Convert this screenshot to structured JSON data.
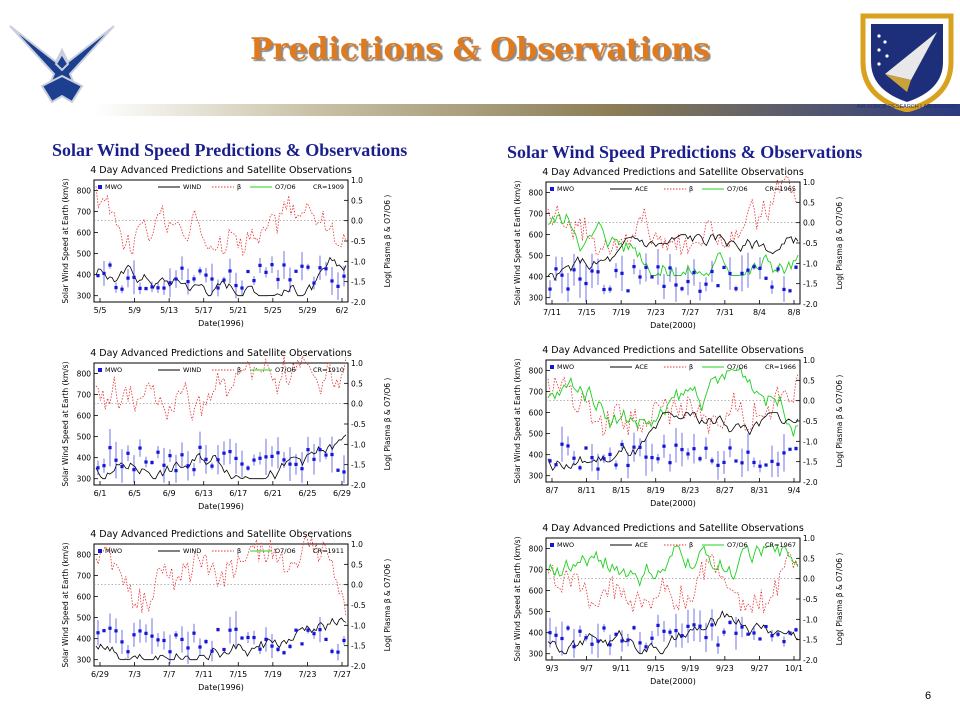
{
  "title": "Predictions & Observations",
  "page_number": "6",
  "columns": [
    {
      "heading": "Solar Wind Speed Predictions & Observations"
    },
    {
      "heading": "Solar Wind Speed Predictions & Observations"
    }
  ],
  "colors": {
    "title": "#e07a1f",
    "heading": "#1b1f8c",
    "mwo": "#1515d8",
    "wind": "#000000",
    "beta": "#e83030",
    "o7o6": "#20d020",
    "grid": "#888888"
  },
  "logos": {
    "left": "air-force-wings-logo",
    "right": "afrl-shield-logo",
    "right_text": "AIR FORCE RESEARCH LABORATORY"
  },
  "chart_data": [
    {
      "type": "line",
      "title": "4 Day Advanced Predictions and Satellite Observations",
      "cr": "CR=1909",
      "legend": [
        "MWO",
        "WIND",
        "β",
        "O7/O6"
      ],
      "x_ticks": [
        "5/5",
        "5/9",
        "5/13",
        "5/17",
        "5/21",
        "5/25",
        "5/29",
        "6/2"
      ],
      "xlabel": "Date(1996)",
      "ylabel": "Solar Wind Speed at Earth (km/s)",
      "y_ticks": [
        "300",
        "400",
        "500",
        "600",
        "700",
        "800"
      ],
      "ylim": [
        270,
        850
      ],
      "y2_ticks": [
        "1.0",
        "0.5",
        "0.0",
        "-0.5",
        "-1.0",
        "-1.5",
        "-2.0"
      ],
      "y2lim": [
        -2.0,
        1.0
      ],
      "y2label": "Log( Plasma β & O7/O6 )",
      "has_o7o6": false
    },
    {
      "type": "line",
      "title": "4 Day Advanced Predictions and Satellite Observations",
      "cr": "CR=1965",
      "legend": [
        "MWO",
        "ACE",
        "β",
        "O7/O6"
      ],
      "x_ticks": [
        "7/11",
        "7/15",
        "7/19",
        "7/23",
        "7/27",
        "7/31",
        "8/4",
        "8/8"
      ],
      "xlabel": "Date(2000)",
      "ylabel": "Solar Wind Speed at Earth (km/s)",
      "y_ticks": [
        "300",
        "400",
        "500",
        "600",
        "700",
        "800"
      ],
      "ylim": [
        270,
        850
      ],
      "y2_ticks": [
        "1.0",
        "0.5",
        "0.0",
        "-0.5",
        "-1.0",
        "-1.5",
        "-2.0"
      ],
      "y2lim": [
        -2.0,
        1.0
      ],
      "y2label": "Log( Plasma β & O7/O6 )",
      "has_o7o6": true
    },
    {
      "type": "line",
      "title": "4 Day Advanced Predictions and Satellite Observations",
      "cr": "CR=1910",
      "legend": [
        "MWO",
        "WIND",
        "β",
        "O7/O6"
      ],
      "x_ticks": [
        "6/1",
        "6/5",
        "6/9",
        "6/13",
        "6/17",
        "6/21",
        "6/25",
        "6/29"
      ],
      "xlabel": "Date(1996)",
      "ylabel": "Solar Wind Speed at Earth (km/s)",
      "y_ticks": [
        "300",
        "400",
        "500",
        "600",
        "700",
        "800"
      ],
      "ylim": [
        270,
        850
      ],
      "y2_ticks": [
        "1.0",
        "0.5",
        "0.0",
        "-0.5",
        "-1.0",
        "-1.5",
        "-2.0"
      ],
      "y2lim": [
        -2.0,
        1.0
      ],
      "y2label": "Log( Plasma β & O7/O6 )",
      "has_o7o6": false
    },
    {
      "type": "line",
      "title": "4 Day Advanced Predictions and Satellite Observations",
      "cr": "CR=1966",
      "legend": [
        "MWO",
        "ACE",
        "β",
        "O7/O6"
      ],
      "x_ticks": [
        "8/7",
        "8/11",
        "8/15",
        "8/19",
        "8/23",
        "8/27",
        "8/31",
        "9/4"
      ],
      "xlabel": "Date(2000)",
      "ylabel": "Solar Wind Speed at Earth (km/s)",
      "y_ticks": [
        "300",
        "400",
        "500",
        "600",
        "700",
        "800"
      ],
      "ylim": [
        270,
        850
      ],
      "y2_ticks": [
        "1.0",
        "0.5",
        "0.0",
        "-0.5",
        "-1.0",
        "-1.5",
        "-2.0"
      ],
      "y2lim": [
        -2.0,
        1.0
      ],
      "y2label": "Log( Plasma β & O7/O6 )",
      "has_o7o6": true
    },
    {
      "type": "line",
      "title": "4 Day Advanced Predictions and Satellite Observations",
      "cr": "CR=1911",
      "legend": [
        "MWO",
        "WIND",
        "β",
        "O7/O6"
      ],
      "x_ticks": [
        "6/29",
        "7/3",
        "7/7",
        "7/11",
        "7/15",
        "7/19",
        "7/23",
        "7/27"
      ],
      "xlabel": "Date(1996)",
      "ylabel": "Solar Wind Speed at Earth (km/s)",
      "y_ticks": [
        "300",
        "400",
        "500",
        "600",
        "700",
        "800"
      ],
      "ylim": [
        270,
        850
      ],
      "y2_ticks": [
        "1.0",
        "0.5",
        "0.0",
        "-0.5",
        "-1.0",
        "-1.5",
        "-2.0"
      ],
      "y2lim": [
        -2.0,
        1.0
      ],
      "y2label": "Log( Plasma β & O7/O6 )",
      "has_o7o6": false
    },
    {
      "type": "line",
      "title": "4 Day Advanced Predictions and Satellite Observations",
      "cr": "CR=1967",
      "legend": [
        "MWO",
        "ACE",
        "β",
        "O7/O6"
      ],
      "x_ticks": [
        "9/3",
        "9/7",
        "9/11",
        "9/15",
        "9/19",
        "9/23",
        "9/27",
        "10/1"
      ],
      "xlabel": "Date(2000)",
      "ylabel": "Solar Wind Speed at Earth (km/s)",
      "y_ticks": [
        "300",
        "400",
        "500",
        "600",
        "700",
        "800"
      ],
      "ylim": [
        270,
        850
      ],
      "y2_ticks": [
        "1.0",
        "0.5",
        "0.0",
        "-0.5",
        "-1.0",
        "-1.5",
        "-2.0"
      ],
      "y2lim": [
        -2.0,
        1.0
      ],
      "y2label": "Log( Plasma β & O7/O6 )",
      "has_o7o6": true
    }
  ]
}
